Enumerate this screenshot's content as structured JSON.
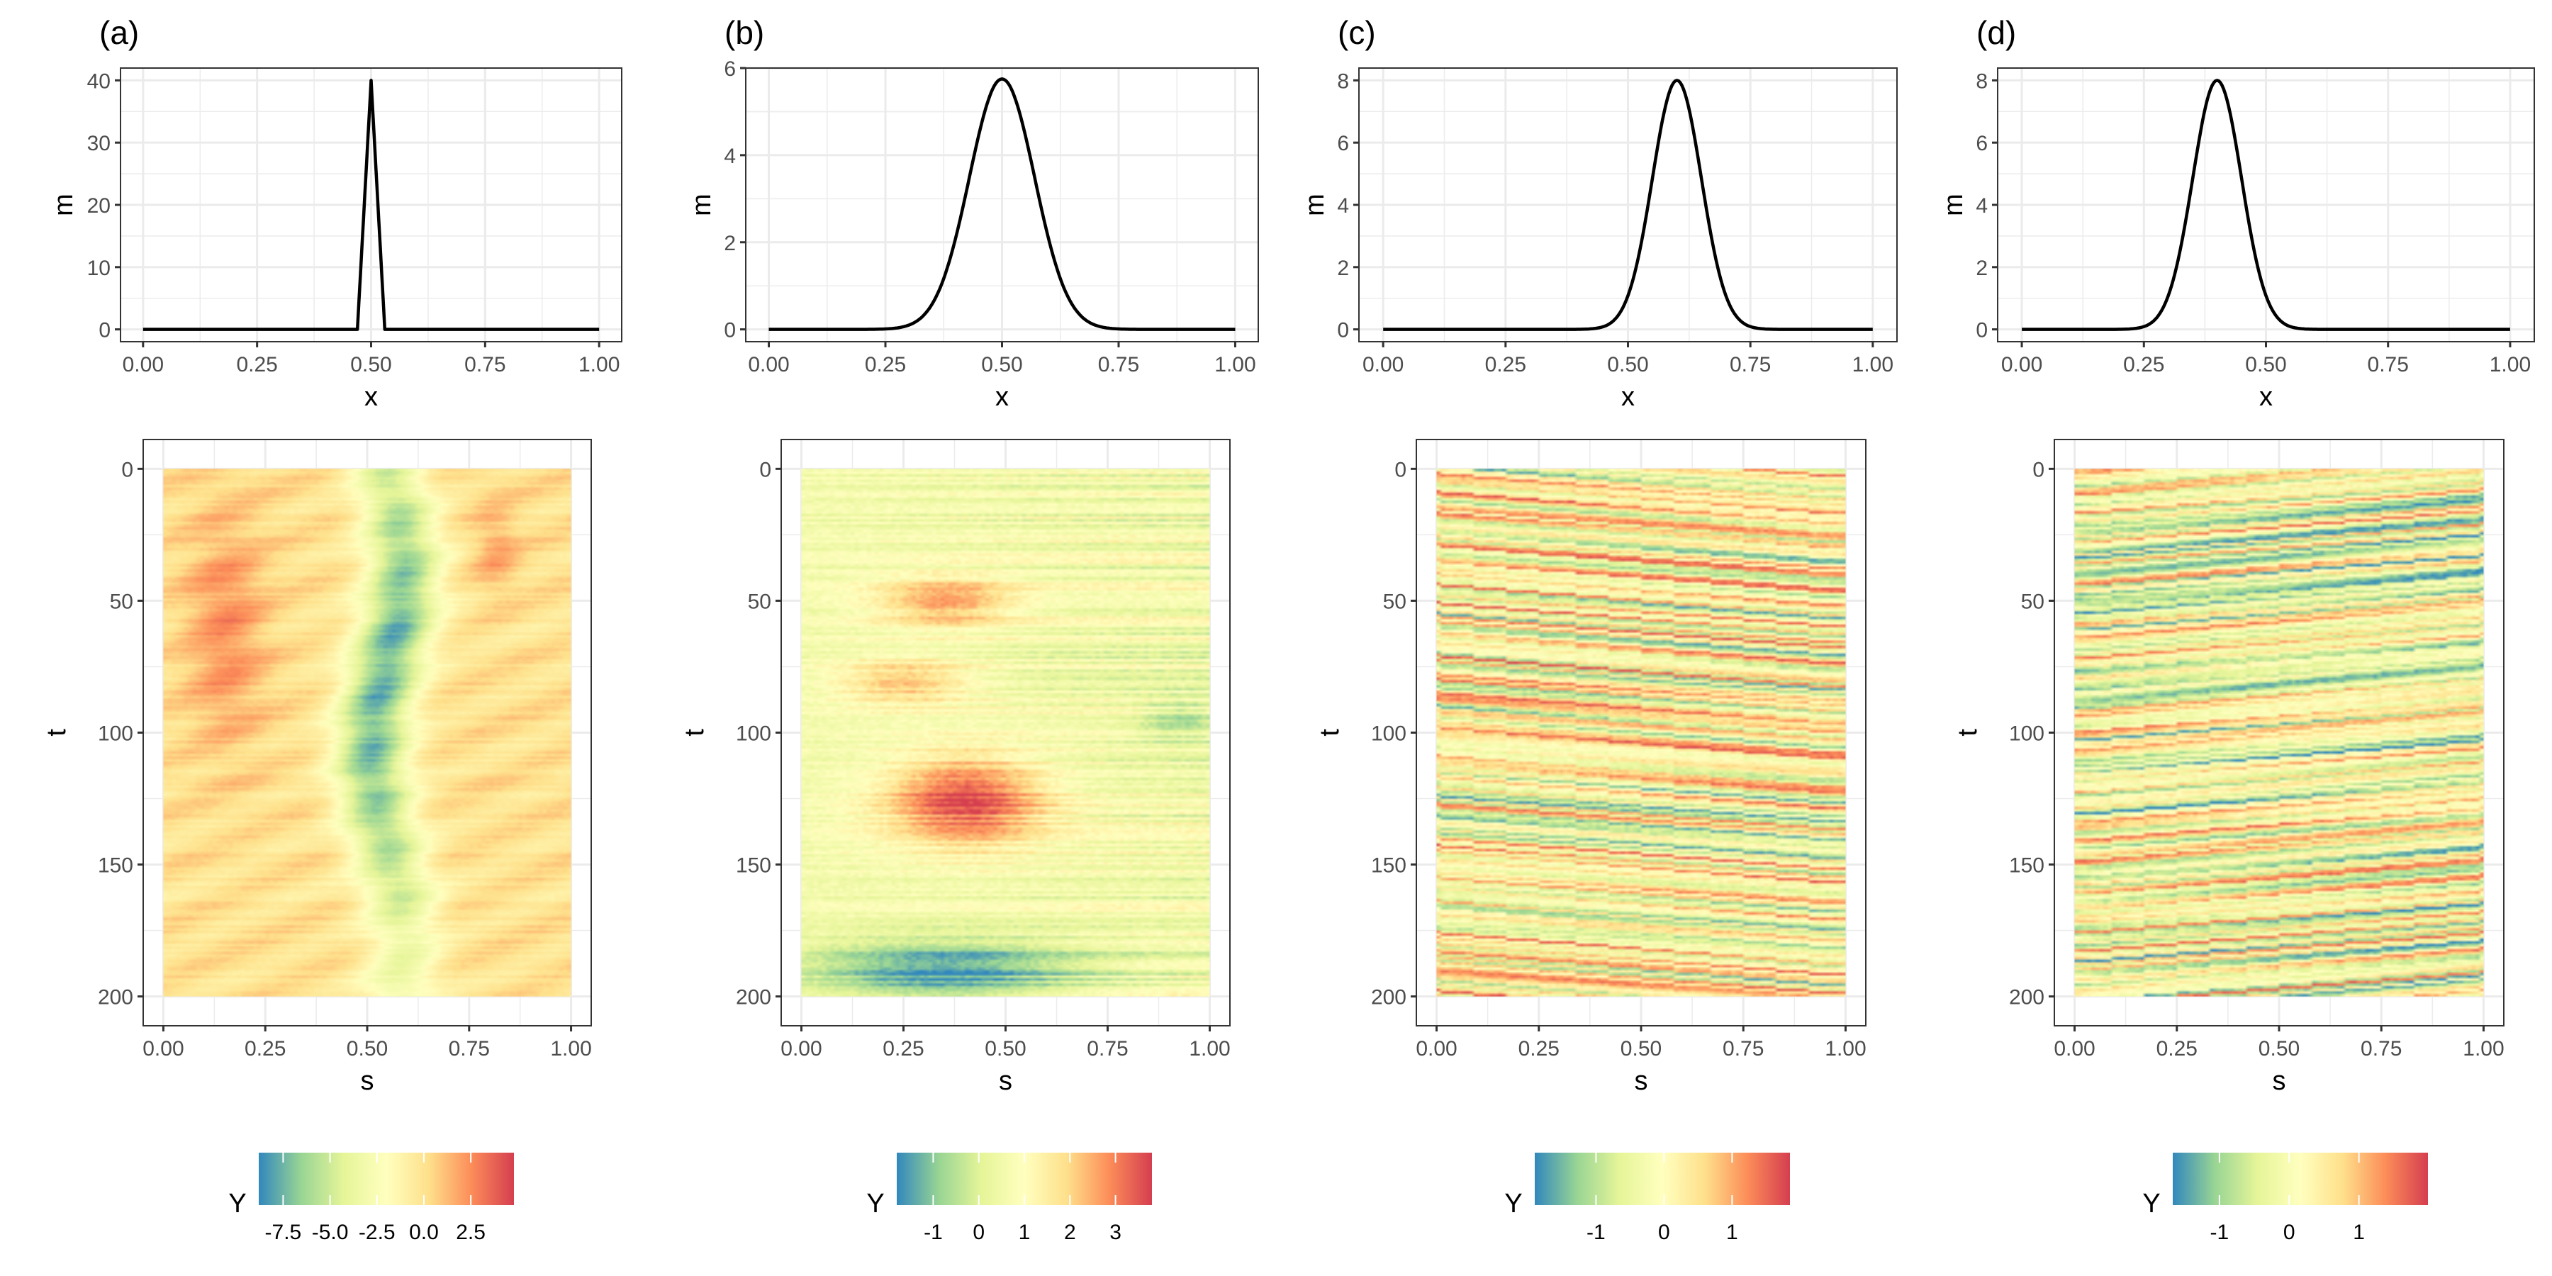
{
  "chart_data": [
    {
      "panel": "(a)",
      "top": {
        "type": "line",
        "xlabel": "x",
        "ylabel": "m",
        "xlim": [
          0,
          1
        ],
        "ylim": [
          0,
          40
        ],
        "xticks": [
          "0.00",
          "0.25",
          "0.50",
          "0.75",
          "1.00"
        ],
        "yticks": [
          "0",
          "10",
          "20",
          "30",
          "40"
        ],
        "ytick_values": [
          0,
          10,
          20,
          30,
          40
        ],
        "curve": {
          "center": 0.5,
          "peak": 40,
          "width": 0.012
        },
        "line_color": "#000000"
      },
      "heatmap": {
        "type": "heatmap",
        "xlabel": "s",
        "ylabel": "t",
        "xlim": [
          0,
          1
        ],
        "ylim": [
          0,
          200
        ],
        "xticks": [
          "0.00",
          "0.25",
          "0.50",
          "0.75",
          "1.00"
        ],
        "yticks": [
          "0",
          "50",
          "100",
          "150",
          "200"
        ],
        "ytick_values": [
          0,
          50,
          100,
          150,
          200
        ],
        "pattern": "vertical-band",
        "value_range": [
          -8.8,
          4.8
        ]
      },
      "legend": {
        "title": "Y",
        "labels": [
          "-7.5",
          "-5.0",
          "-2.5",
          "0.0",
          "2.5"
        ],
        "values": [
          -7.5,
          -5.0,
          -2.5,
          0.0,
          2.5
        ],
        "range": [
          -8.8,
          4.8
        ]
      }
    },
    {
      "panel": "(b)",
      "top": {
        "type": "line",
        "xlabel": "x",
        "ylabel": "m",
        "xlim": [
          0,
          1
        ],
        "ylim": [
          0,
          6
        ],
        "xticks": [
          "0.00",
          "0.25",
          "0.50",
          "0.75",
          "1.00"
        ],
        "yticks": [
          "0",
          "2",
          "4",
          "6"
        ],
        "ytick_values": [
          0,
          2,
          4,
          6
        ],
        "curve": {
          "center": 0.5,
          "peak": 5.75,
          "width": 0.07
        },
        "line_color": "#000000"
      },
      "heatmap": {
        "type": "heatmap",
        "xlabel": "s",
        "ylabel": "t",
        "xlim": [
          0,
          1
        ],
        "ylim": [
          0,
          200
        ],
        "xticks": [
          "0.00",
          "0.25",
          "0.50",
          "0.75",
          "1.00"
        ],
        "yticks": [
          "0",
          "50",
          "100",
          "150",
          "200"
        ],
        "ytick_values": [
          0,
          50,
          100,
          150,
          200
        ],
        "pattern": "horizontal-blobs",
        "value_range": [
          -1.8,
          3.8
        ]
      },
      "legend": {
        "title": "Y",
        "labels": [
          "-1",
          "0",
          "1",
          "2",
          "3"
        ],
        "values": [
          -1,
          0,
          1,
          2,
          3
        ],
        "range": [
          -1.8,
          3.8
        ]
      }
    },
    {
      "panel": "(c)",
      "top": {
        "type": "line",
        "xlabel": "x",
        "ylabel": "m",
        "xlim": [
          0,
          1
        ],
        "ylim": [
          0,
          8
        ],
        "xticks": [
          "0.00",
          "0.25",
          "0.50",
          "0.75",
          "1.00"
        ],
        "yticks": [
          "0",
          "2",
          "4",
          "6",
          "8"
        ],
        "ytick_values": [
          0,
          2,
          4,
          6,
          8
        ],
        "curve": {
          "center": 0.6,
          "peak": 8,
          "width": 0.05
        },
        "line_color": "#000000"
      },
      "heatmap": {
        "type": "heatmap",
        "xlabel": "s",
        "ylabel": "t",
        "xlim": [
          0,
          1
        ],
        "ylim": [
          0,
          200
        ],
        "xticks": [
          "0.00",
          "0.25",
          "0.50",
          "0.75",
          "1.00"
        ],
        "yticks": [
          "0",
          "50",
          "100",
          "150",
          "200"
        ],
        "ytick_values": [
          0,
          50,
          100,
          150,
          200
        ],
        "pattern": "streaks-rising",
        "value_range": [
          -1.9,
          1.85
        ]
      },
      "legend": {
        "title": "Y",
        "labels": [
          "-1",
          "0",
          "1"
        ],
        "values": [
          -1,
          0,
          1
        ],
        "range": [
          -1.9,
          1.85
        ]
      }
    },
    {
      "panel": "(d)",
      "top": {
        "type": "line",
        "xlabel": "x",
        "ylabel": "m",
        "xlim": [
          0,
          1
        ],
        "ylim": [
          0,
          8
        ],
        "xticks": [
          "0.00",
          "0.25",
          "0.50",
          "0.75",
          "1.00"
        ],
        "yticks": [
          "0",
          "2",
          "4",
          "6",
          "8"
        ],
        "ytick_values": [
          0,
          2,
          4,
          6,
          8
        ],
        "curve": {
          "center": 0.4,
          "peak": 8,
          "width": 0.05
        },
        "line_color": "#000000"
      },
      "heatmap": {
        "type": "heatmap",
        "xlabel": "s",
        "ylabel": "t",
        "xlim": [
          0,
          1
        ],
        "ylim": [
          0,
          200
        ],
        "xticks": [
          "0.00",
          "0.25",
          "0.50",
          "0.75",
          "1.00"
        ],
        "yticks": [
          "0",
          "50",
          "100",
          "150",
          "200"
        ],
        "ytick_values": [
          0,
          50,
          100,
          150,
          200
        ],
        "pattern": "streaks-falling",
        "value_range": [
          -1.67,
          1.99
        ]
      },
      "legend": {
        "title": "Y",
        "labels": [
          "-1",
          "0",
          "1"
        ],
        "values": [
          -1,
          0,
          1
        ],
        "range": [
          -1.67,
          1.99
        ]
      }
    }
  ],
  "colormap": [
    "#3288bd",
    "#99d594",
    "#e6f598",
    "#ffffbf",
    "#fee08b",
    "#fc8d59",
    "#d53e4f"
  ]
}
